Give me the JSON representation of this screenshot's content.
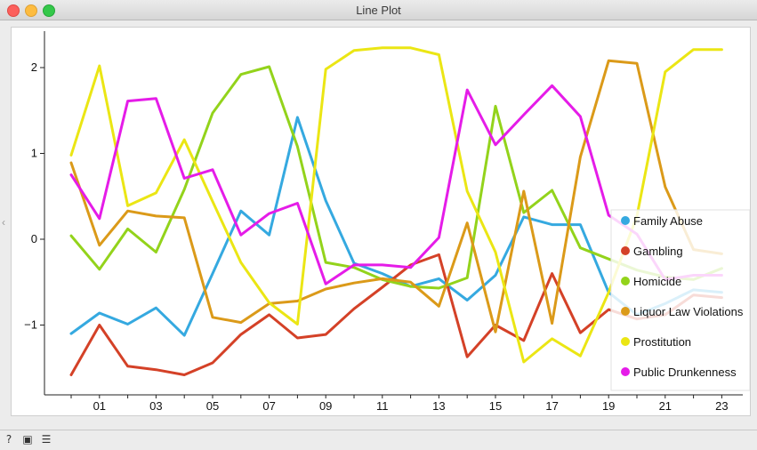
{
  "window": {
    "title": "Line Plot"
  },
  "statusbar": {
    "icons": [
      "help-icon",
      "save-icon",
      "report-icon"
    ]
  },
  "chart_data": {
    "type": "line",
    "title": "",
    "xlabel": "",
    "ylabel": "",
    "x": [
      "00",
      "01",
      "02",
      "03",
      "04",
      "05",
      "06",
      "07",
      "08",
      "09",
      "10",
      "11",
      "12",
      "13",
      "14",
      "15",
      "16",
      "17",
      "18",
      "19",
      "20",
      "21",
      "22",
      "23"
    ],
    "x_tick_labels": [
      "01",
      "03",
      "05",
      "07",
      "09",
      "11",
      "13",
      "15",
      "17",
      "19",
      "21",
      "23"
    ],
    "y_ticks": [
      -1,
      0,
      1,
      2
    ],
    "ylim": [
      -1.8,
      2.45
    ],
    "grid": false,
    "legend_position": "right",
    "series": [
      {
        "name": "Family Abuse",
        "color": "#35a9e0",
        "values": [
          -1.1,
          -0.86,
          -0.99,
          -0.8,
          -1.12,
          -0.4,
          0.33,
          0.05,
          1.42,
          0.45,
          -0.28,
          -0.4,
          -0.55,
          -0.46,
          -0.71,
          -0.42,
          0.26,
          0.17,
          0.17,
          -0.62,
          -0.88,
          -0.75,
          -0.59,
          -0.62
        ]
      },
      {
        "name": "Gambling",
        "color": "#d44127",
        "values": [
          -1.58,
          -1.0,
          -1.48,
          -1.52,
          -1.58,
          -1.44,
          -1.11,
          -0.88,
          -1.15,
          -1.11,
          -0.81,
          -0.56,
          -0.3,
          -0.18,
          -1.37,
          -1.0,
          -1.18,
          -0.4,
          -1.09,
          -0.82,
          -0.93,
          -0.88,
          -0.65,
          -0.68
        ]
      },
      {
        "name": "Homicide",
        "color": "#93d31b",
        "values": [
          0.04,
          -0.35,
          0.12,
          -0.15,
          0.58,
          1.47,
          1.92,
          2.01,
          1.08,
          -0.27,
          -0.33,
          -0.47,
          -0.55,
          -0.57,
          -0.45,
          1.55,
          0.31,
          0.57,
          -0.1,
          -0.23,
          -0.36,
          -0.44,
          -0.47,
          -0.34
        ]
      },
      {
        "name": "Liquor Law Violations",
        "color": "#db9a19",
        "values": [
          0.89,
          -0.07,
          0.33,
          0.27,
          0.25,
          -0.91,
          -0.97,
          -0.75,
          -0.72,
          -0.58,
          -0.51,
          -0.46,
          -0.5,
          -0.78,
          0.19,
          -1.08,
          0.56,
          -0.98,
          0.96,
          2.08,
          2.05,
          0.61,
          -0.12,
          -0.17
        ]
      },
      {
        "name": "Prostitution",
        "color": "#ebe614",
        "values": [
          0.98,
          2.02,
          0.39,
          0.54,
          1.16,
          0.44,
          -0.27,
          -0.74,
          -0.99,
          1.98,
          2.2,
          2.23,
          2.23,
          2.15,
          0.56,
          -0.15,
          -1.43,
          -1.16,
          -1.36,
          -0.62,
          0.27,
          1.95,
          2.21,
          2.21
        ]
      },
      {
        "name": "Public Drunkenness",
        "color": "#e51ce8",
        "values": [
          0.75,
          0.24,
          1.61,
          1.64,
          0.71,
          0.81,
          0.05,
          0.3,
          0.42,
          -0.52,
          -0.3,
          -0.3,
          -0.33,
          0.02,
          1.74,
          1.1,
          1.45,
          1.79,
          1.43,
          0.28,
          0.06,
          -0.47,
          -0.42,
          -0.42
        ]
      }
    ]
  }
}
